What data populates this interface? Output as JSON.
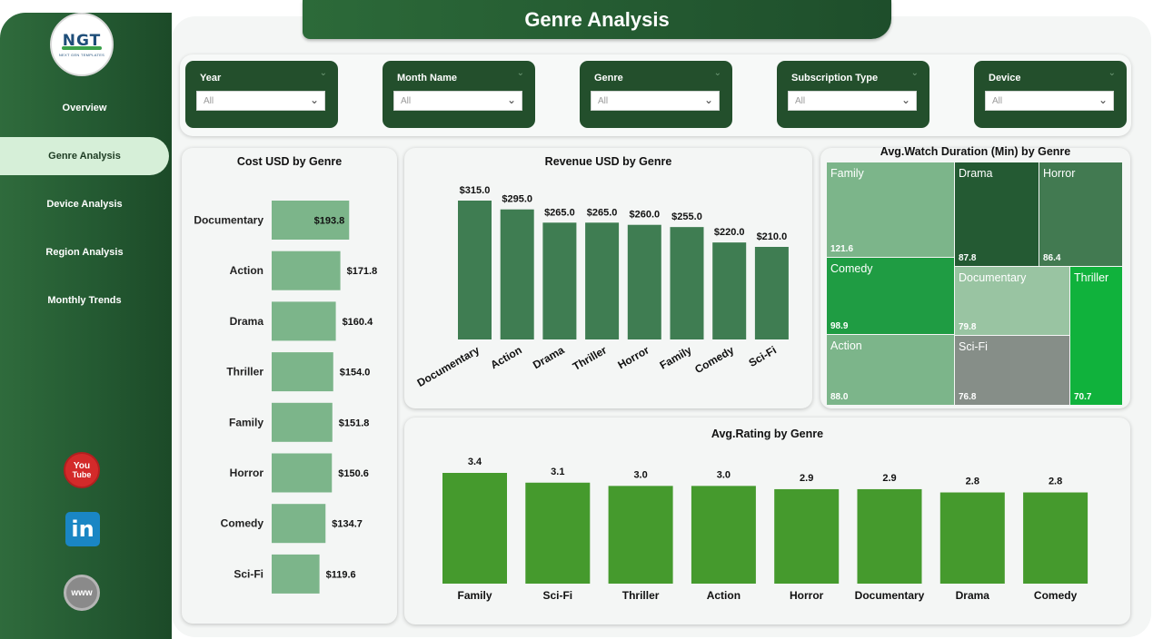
{
  "app": {
    "title": "Genre Analysis"
  },
  "sidebar": {
    "logo": {
      "brand": "NGT",
      "tagline": "NEXT GEN TEMPLATES"
    },
    "items": [
      {
        "label": "Overview"
      },
      {
        "label": "Genre Analysis"
      },
      {
        "label": "Device Analysis"
      },
      {
        "label": "Region Analysis"
      },
      {
        "label": "Monthly Trends"
      }
    ],
    "social": {
      "youtube_top": "You",
      "youtube_bottom": "Tube",
      "linkedin": "in",
      "web": "www"
    }
  },
  "filters": [
    {
      "label": "Year",
      "value": "All"
    },
    {
      "label": "Month Name",
      "value": "All"
    },
    {
      "label": "Genre",
      "value": "All"
    },
    {
      "label": "Subscription Type",
      "value": "All"
    },
    {
      "label": "Device",
      "value": "All"
    }
  ],
  "colors": {
    "dark_green": "#234f2c",
    "bar_light": "#7cb58a",
    "bar_mid": "#3f7d52",
    "bar_bright": "#459a2d"
  },
  "chart_data": [
    {
      "id": "cost",
      "type": "bar",
      "orientation": "horizontal",
      "title": "Cost USD by Genre",
      "categories": [
        "Documentary",
        "Action",
        "Drama",
        "Thriller",
        "Family",
        "Horror",
        "Comedy",
        "Sci-Fi"
      ],
      "values": [
        193.8,
        171.8,
        160.4,
        154.0,
        151.8,
        150.6,
        134.7,
        119.6
      ],
      "labels": [
        "$193.8",
        "$171.8",
        "$160.4",
        "$154.0",
        "$151.8",
        "$150.6",
        "$134.7",
        "$119.6"
      ],
      "xlim": [
        0,
        200
      ]
    },
    {
      "id": "revenue",
      "type": "bar",
      "title": "Revenue USD by Genre",
      "categories": [
        "Documentary",
        "Action",
        "Drama",
        "Thriller",
        "Horror",
        "Family",
        "Comedy",
        "Sci-Fi"
      ],
      "values": [
        315.0,
        295.0,
        265.0,
        265.0,
        260.0,
        255.0,
        220.0,
        210.0
      ],
      "labels": [
        "$315.0",
        "$295.0",
        "$265.0",
        "$265.0",
        "$260.0",
        "$255.0",
        "$220.0",
        "$210.0"
      ],
      "ylim": [
        0,
        315
      ]
    },
    {
      "id": "watch",
      "type": "treemap",
      "title": "Avg.Watch Duration (Min) by Genre",
      "items": [
        {
          "name": "Family",
          "value": 121.6,
          "label": "121.6",
          "color": "#7cb58a"
        },
        {
          "name": "Drama",
          "value": 87.8,
          "label": "87.8",
          "color": "#245a33"
        },
        {
          "name": "Horror",
          "value": 86.4,
          "label": "86.4",
          "color": "#427a51"
        },
        {
          "name": "Comedy",
          "value": 98.9,
          "label": "98.9",
          "color": "#1f9c43"
        },
        {
          "name": "Documentary",
          "value": 79.8,
          "label": "79.8",
          "color": "#99c4a2"
        },
        {
          "name": "Thriller",
          "value": 70.7,
          "label": "70.7",
          "color": "#10b23c"
        },
        {
          "name": "Action",
          "value": 88.0,
          "label": "88.0",
          "color": "#7cb58a"
        },
        {
          "name": "Sci-Fi",
          "value": 76.8,
          "label": "76.8",
          "color": "#868e88"
        }
      ]
    },
    {
      "id": "rating",
      "type": "bar",
      "title": "Avg.Rating by Genre",
      "categories": [
        "Family",
        "Sci-Fi",
        "Thriller",
        "Action",
        "Horror",
        "Documentary",
        "Drama",
        "Comedy"
      ],
      "values": [
        3.4,
        3.1,
        3.0,
        3.0,
        2.9,
        2.9,
        2.8,
        2.8
      ],
      "labels": [
        "3.4",
        "3.1",
        "3.0",
        "3.0",
        "2.9",
        "2.9",
        "2.8",
        "2.8"
      ],
      "ylim": [
        0,
        3.4
      ]
    }
  ]
}
